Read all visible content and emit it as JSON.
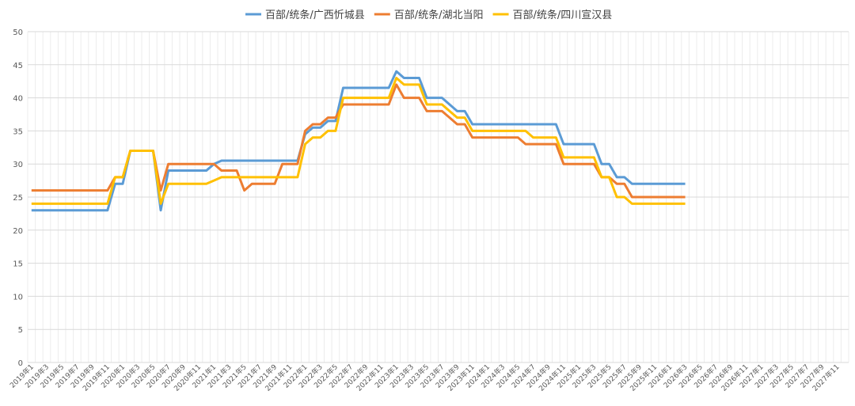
{
  "chart_data": {
    "type": "line",
    "categories": [
      "2019年1",
      null,
      "2019年3",
      null,
      "2019年5",
      null,
      "2019年7",
      null,
      "2019年9",
      null,
      "2019年11",
      null,
      "2020年1",
      null,
      "2020年3",
      null,
      "2020年5",
      null,
      "2020年7",
      null,
      "2020年9",
      null,
      "2020年11",
      null,
      "2021年1",
      null,
      "2021年3",
      null,
      "2021年5",
      null,
      "2021年7",
      null,
      "2021年9",
      null,
      "2021年11",
      null,
      "2022年1",
      null,
      "2022年3",
      null,
      "2022年5",
      null,
      "2022年7",
      null,
      "2022年9",
      null,
      "2022年11",
      null,
      "2023年1",
      null,
      "2023年3",
      null,
      "2023年5",
      null,
      "2023年7",
      null,
      "2023年9",
      null,
      "2023年11",
      null,
      "2024年1",
      null,
      "2024年3",
      null,
      "2024年5",
      null,
      "2024年7",
      null,
      "2024年9",
      null,
      "2024年11",
      null,
      "2025年1",
      null,
      "2025年3",
      null,
      "2025年5",
      null,
      "2025年7",
      null,
      "2025年9",
      null,
      "2025年11",
      null,
      "2026年1",
      null,
      "2026年3",
      null,
      "2026年5",
      null,
      "2026年7",
      null,
      "2026年9",
      null,
      "2026年11",
      null,
      "2027年1",
      null,
      "2027年3",
      null,
      "2027年5",
      null,
      "2027年7",
      null,
      "2027年9",
      null,
      "2027年11",
      null
    ],
    "series": [
      {
        "name": "百部/统条/广西忻城县",
        "color": "#5b9bd5",
        "values": [
          23,
          23,
          23,
          23,
          23,
          23,
          23,
          23,
          23,
          23,
          23,
          27,
          27,
          32,
          32,
          32,
          32,
          23,
          29,
          29,
          29,
          29,
          29,
          29,
          30,
          30.5,
          30.5,
          30.5,
          30.5,
          30.5,
          30.5,
          30.5,
          30.5,
          30.5,
          30.5,
          30.5,
          34.5,
          35.5,
          35.5,
          36.5,
          36.5,
          41.5,
          41.5,
          41.5,
          41.5,
          41.5,
          41.5,
          41.5,
          44,
          43,
          43,
          43,
          40,
          40,
          40,
          39,
          38,
          38,
          36,
          36,
          36,
          36,
          36,
          36,
          36,
          36,
          36,
          36,
          36,
          36,
          33,
          33,
          33,
          33,
          33,
          30,
          30,
          28,
          28,
          27,
          27,
          27,
          27,
          27,
          27,
          27,
          27,
          null,
          null,
          null,
          null,
          null,
          null,
          null,
          null,
          null,
          null,
          null,
          null,
          null,
          null,
          null,
          null,
          null,
          null,
          null,
          null,
          null
        ]
      },
      {
        "name": "百部/统条/湖北当阳",
        "color": "#ed7d31",
        "values": [
          26,
          26,
          26,
          26,
          26,
          26,
          26,
          26,
          26,
          26,
          26,
          28,
          28,
          32,
          32,
          32,
          32,
          26,
          30,
          30,
          30,
          30,
          30,
          30,
          30,
          29,
          29,
          29,
          26,
          27,
          27,
          27,
          27,
          30,
          30,
          30,
          35,
          36,
          36,
          37,
          37,
          39,
          39,
          39,
          39,
          39,
          39,
          39,
          42,
          40,
          40,
          40,
          38,
          38,
          38,
          37,
          36,
          36,
          34,
          34,
          34,
          34,
          34,
          34,
          34,
          33,
          33,
          33,
          33,
          33,
          30,
          30,
          30,
          30,
          30,
          28,
          28,
          27,
          27,
          25,
          25,
          25,
          25,
          25,
          25,
          25,
          25,
          null,
          null,
          null,
          null,
          null,
          null,
          null,
          null,
          null,
          null,
          null,
          null,
          null,
          null,
          null,
          null,
          null,
          null,
          null,
          null,
          null
        ]
      },
      {
        "name": "百部/统条/四川宣汉县",
        "color": "#ffc000",
        "values": [
          24,
          24,
          24,
          24,
          24,
          24,
          24,
          24,
          24,
          24,
          24,
          28,
          28,
          32,
          32,
          32,
          32,
          24,
          27,
          27,
          27,
          27,
          27,
          27,
          27.5,
          28,
          28,
          28,
          28,
          28,
          28,
          28,
          28,
          28,
          28,
          28,
          33,
          34,
          34,
          35,
          35,
          40,
          40,
          40,
          40,
          40,
          40,
          40,
          43,
          42,
          42,
          42,
          39,
          39,
          39,
          38,
          37,
          37,
          35,
          35,
          35,
          35,
          35,
          35,
          35,
          35,
          34,
          34,
          34,
          34,
          31,
          31,
          31,
          31,
          31,
          28,
          28,
          25,
          25,
          24,
          24,
          24,
          24,
          24,
          24,
          24,
          24,
          null,
          null,
          null,
          null,
          null,
          null,
          null,
          null,
          null,
          null,
          null,
          null,
          null,
          null,
          null,
          null,
          null,
          null,
          null,
          null,
          null
        ]
      }
    ],
    "ylim": [
      0,
      50
    ],
    "yticks": [
      0,
      5,
      10,
      15,
      20,
      25,
      30,
      35,
      40,
      45,
      50
    ],
    "grid": true,
    "legend": "top"
  }
}
